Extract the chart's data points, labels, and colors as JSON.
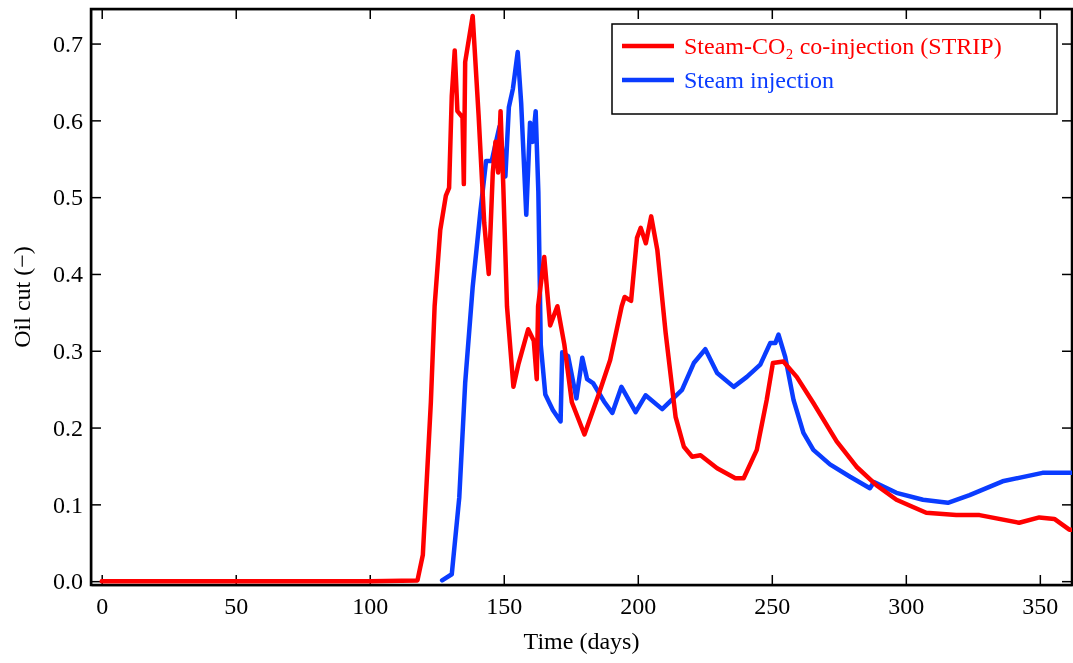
{
  "chart_data": {
    "type": "line",
    "xlabel": "Time (days)",
    "ylabel": "Oil cut (−)",
    "xlim": [
      -4,
      362
    ],
    "ylim": [
      -0.005,
      0.745
    ],
    "xticks": [
      0,
      50,
      100,
      150,
      200,
      250,
      300,
      350
    ],
    "yticks": [
      {
        "value": 0,
        "label": "0.0"
      },
      0.1,
      0.2,
      0.3,
      0.4,
      0.5,
      0.6,
      0.7
    ],
    "grid": false,
    "legend": "top right",
    "line_style": "solid",
    "marker": "none",
    "series": [
      {
        "name": "Steam-CO₂ co-injection (STRIP)",
        "color": "#ff0000",
        "x": [
          0,
          50,
          100,
          117.8,
          119.8,
          122.8,
          124.2,
          126.3,
          128.4,
          129.6,
          130.6,
          131.7,
          132.7,
          134.6,
          135.1,
          135.6,
          138.4,
          140.6,
          142.7,
          144.4,
          145.9,
          146.9,
          147.9,
          148.8,
          149.8,
          151.2,
          153.6,
          155.5,
          159.1,
          161.2,
          162.3,
          162.8,
          165.1,
          167.3,
          170,
          172.6,
          175.4,
          180.1,
          185.4,
          189.7,
          194,
          195.1,
          197.5,
          199.7,
          201.1,
          203,
          205,
          207.3,
          210.4,
          214.1,
          217.2,
          220.3,
          223.4,
          229.6,
          236.4,
          239.5,
          244.4,
          248.1,
          250.4,
          254.3,
          259.3,
          265.5,
          274.2,
          281.6,
          289,
          296.5,
          307.6,
          318.8,
          327.5,
          342.3,
          349.8,
          355.4,
          361,
          362
        ],
        "values": [
          0,
          0,
          0,
          0.001,
          0.034,
          0.233,
          0.358,
          0.457,
          0.502,
          0.512,
          0.632,
          0.691,
          0.612,
          0.604,
          0.517,
          0.676,
          0.736,
          0.607,
          0.467,
          0.4,
          0.532,
          0.572,
          0.532,
          0.612,
          0.517,
          0.358,
          0.253,
          0.283,
          0.328,
          0.313,
          0.263,
          0.358,
          0.422,
          0.333,
          0.358,
          0.308,
          0.233,
          0.191,
          0.243,
          0.288,
          0.358,
          0.37,
          0.365,
          0.447,
          0.46,
          0.44,
          0.475,
          0.431,
          0.323,
          0.214,
          0.175,
          0.162,
          0.164,
          0.147,
          0.134,
          0.134,
          0.171,
          0.236,
          0.284,
          0.286,
          0.266,
          0.232,
          0.182,
          0.149,
          0.125,
          0.106,
          0.089,
          0.086,
          0.086,
          0.076,
          0.083,
          0.081,
          0.067,
          0.067
        ]
      },
      {
        "name": "Steam injection",
        "color": "#0a3cff",
        "x": [
          127,
          130.6,
          133.4,
          135.6,
          138.4,
          141.3,
          143.4,
          145.5,
          148.4,
          150.6,
          151.9,
          153.4,
          155.2,
          156.5,
          158.4,
          159.8,
          160.8,
          161.9,
          162.9,
          163.8,
          165.5,
          168.3,
          171.2,
          171.8,
          174,
          177.1,
          179.3,
          181.1,
          183.3,
          187.4,
          190.5,
          193.9,
          199.2,
          202.9,
          209.1,
          216.5,
          220.9,
          225.2,
          229.6,
          235.8,
          240.7,
          245.7,
          249.4,
          251.3,
          252.5,
          255,
          258.1,
          261.8,
          265.5,
          271.7,
          279.2,
          286.6,
          288.1,
          296.5,
          306.4,
          315.7,
          323.8,
          336.1,
          351,
          362
        ],
        "values": [
          0.001,
          0.009,
          0.109,
          0.258,
          0.383,
          0.482,
          0.547,
          0.547,
          0.592,
          0.527,
          0.617,
          0.641,
          0.689,
          0.622,
          0.477,
          0.597,
          0.572,
          0.612,
          0.507,
          0.308,
          0.243,
          0.223,
          0.208,
          0.298,
          0.293,
          0.238,
          0.291,
          0.263,
          0.258,
          0.234,
          0.219,
          0.253,
          0.22,
          0.242,
          0.224,
          0.249,
          0.284,
          0.302,
          0.271,
          0.253,
          0.266,
          0.282,
          0.31,
          0.31,
          0.321,
          0.292,
          0.236,
          0.193,
          0.171,
          0.152,
          0.136,
          0.121,
          0.129,
          0.115,
          0.106,
          0.102,
          0.112,
          0.13,
          0.141,
          0.141
        ]
      }
    ]
  }
}
